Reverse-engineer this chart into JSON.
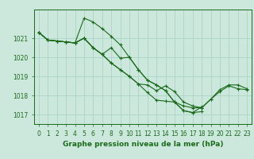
{
  "title": "Graphe pression niveau de la mer (hPa)",
  "bg_color": "#cce8dd",
  "grid_color": "#aad4c8",
  "line_color": "#1a6b1a",
  "xlim": [
    -0.5,
    23.5
  ],
  "ylim": [
    1016.5,
    1022.5
  ],
  "yticks": [
    1017,
    1018,
    1019,
    1020,
    1021
  ],
  "xticks": [
    0,
    1,
    2,
    3,
    4,
    5,
    6,
    7,
    8,
    9,
    10,
    11,
    12,
    13,
    14,
    15,
    16,
    17,
    18,
    19,
    20,
    21,
    22,
    23
  ],
  "series": [
    {
      "x": [
        0,
        1,
        2,
        3,
        4,
        5,
        6,
        7,
        8,
        9,
        10,
        11,
        12,
        13,
        14,
        15,
        16,
        17,
        18,
        19,
        20,
        21,
        22,
        23
      ],
      "y": [
        1021.3,
        1020.9,
        1020.85,
        1020.8,
        1020.75,
        1021.0,
        1020.5,
        1020.15,
        1019.7,
        1019.35,
        1019.0,
        1018.6,
        1018.15,
        1017.75,
        1017.7,
        1017.65,
        1017.45,
        1017.35,
        1017.35,
        1017.8,
        1018.2,
        1018.5,
        1018.35,
        1018.3
      ]
    },
    {
      "x": [
        0,
        1,
        2,
        3,
        4,
        5,
        6,
        7,
        8,
        9,
        10,
        11,
        12,
        13,
        14,
        15,
        16,
        17,
        18
      ],
      "y": [
        1021.3,
        1020.9,
        1020.85,
        1020.8,
        1020.75,
        1022.05,
        1021.85,
        1021.5,
        1021.1,
        1020.65,
        1020.0,
        1019.35,
        1018.8,
        1018.55,
        1018.25,
        1017.65,
        1017.2,
        1017.1,
        1017.15
      ]
    },
    {
      "x": [
        0,
        1,
        2,
        3,
        4,
        5,
        6,
        7,
        8,
        9,
        10,
        11,
        12,
        13,
        14,
        15,
        16,
        17,
        18
      ],
      "y": [
        1021.3,
        1020.9,
        1020.85,
        1020.8,
        1020.75,
        1021.0,
        1020.5,
        1020.15,
        1020.5,
        1019.95,
        1020.0,
        1019.35,
        1018.8,
        1018.55,
        1018.25,
        1017.65,
        1017.2,
        1017.1,
        1017.4
      ]
    },
    {
      "x": [
        0,
        1,
        2,
        3,
        4,
        5,
        6,
        7,
        8,
        9,
        10,
        11,
        12,
        13,
        14,
        15,
        16,
        17,
        18,
        19,
        20,
        21,
        22,
        23
      ],
      "y": [
        1021.3,
        1020.9,
        1020.85,
        1020.8,
        1020.75,
        1021.0,
        1020.5,
        1020.15,
        1019.7,
        1019.35,
        1019.0,
        1018.6,
        1018.55,
        1018.25,
        1018.5,
        1018.2,
        1017.65,
        1017.45,
        1017.35,
        1017.8,
        1018.3,
        1018.55,
        1018.55,
        1018.35
      ]
    }
  ],
  "title_fontsize": 6.5,
  "tick_fontsize": 5.5
}
